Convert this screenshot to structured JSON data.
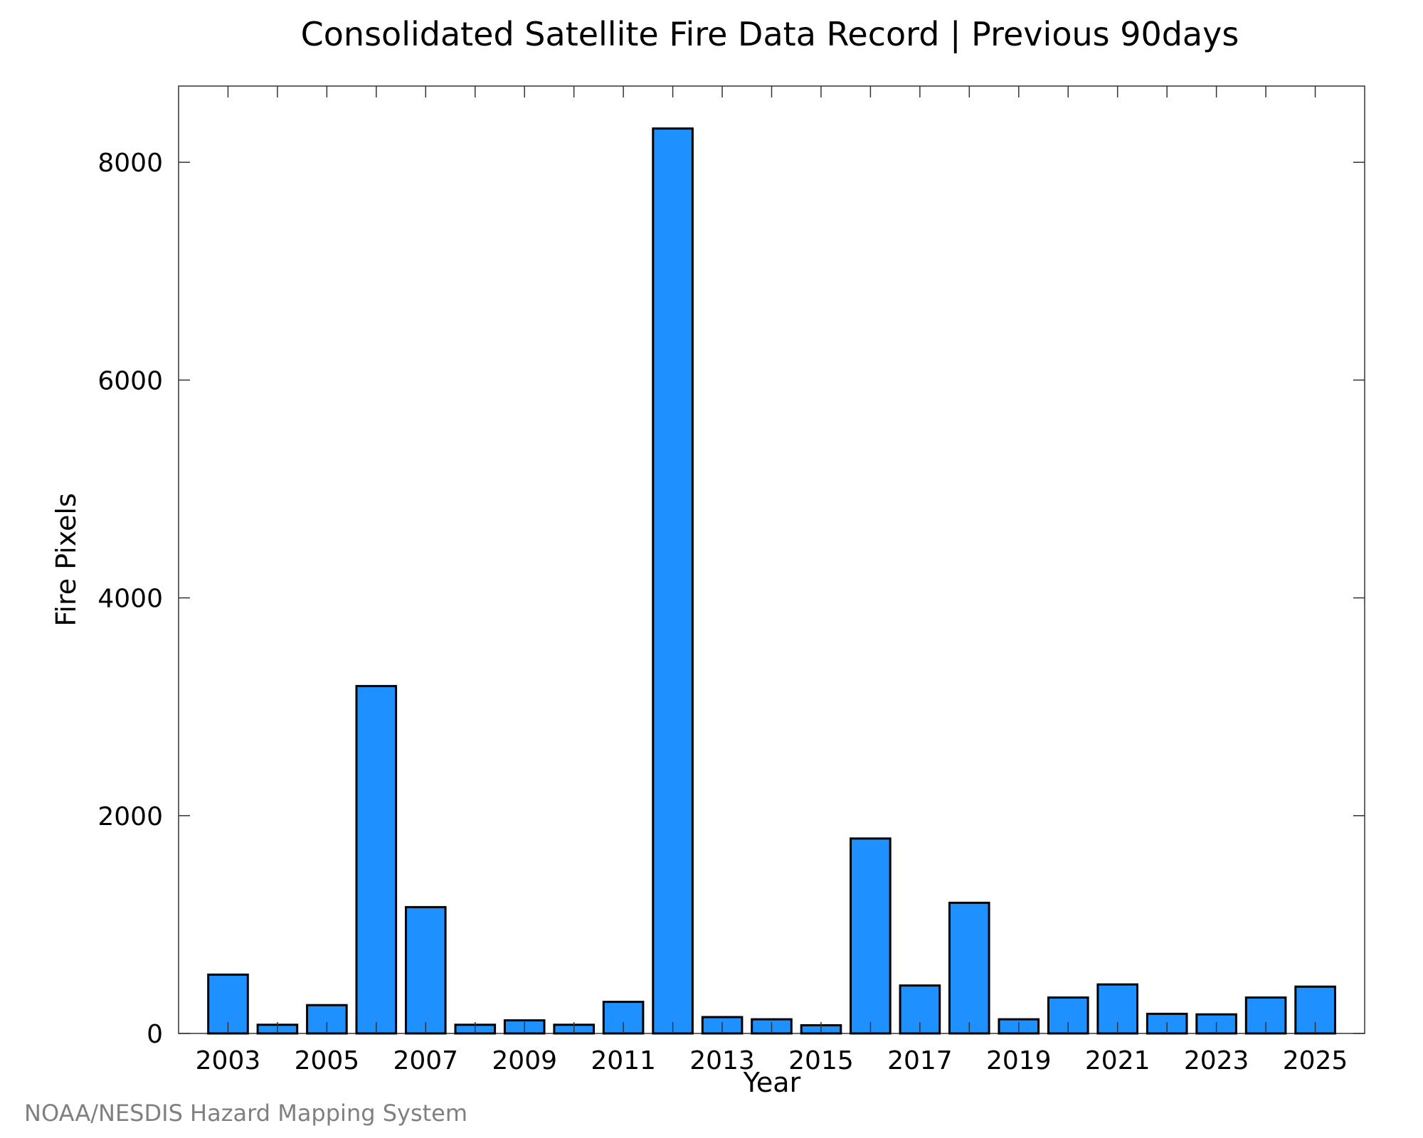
{
  "chart_data": {
    "type": "bar",
    "title": "Consolidated Satellite Fire Data Record | Previous 90days",
    "xlabel": "Year",
    "ylabel": "Fire Pixels",
    "categories": [
      "2003",
      "2004",
      "2005",
      "2006",
      "2007",
      "2008",
      "2009",
      "2010",
      "2011",
      "2012",
      "2013",
      "2014",
      "2015",
      "2016",
      "2017",
      "2018",
      "2019",
      "2020",
      "2021",
      "2022",
      "2023",
      "2024",
      "2025"
    ],
    "x_tick_labels": [
      "2003",
      "2005",
      "2007",
      "2009",
      "2011",
      "2013",
      "2015",
      "2017",
      "2019",
      "2021",
      "2023",
      "2025"
    ],
    "values": [
      540,
      80,
      260,
      3190,
      1160,
      80,
      120,
      80,
      290,
      8310,
      150,
      130,
      75,
      1790,
      440,
      1200,
      130,
      330,
      450,
      180,
      175,
      330,
      430
    ],
    "ylim": [
      0,
      8700
    ],
    "y_ticks": [
      0,
      2000,
      4000,
      6000,
      8000
    ],
    "bar_color": "#1E90FF",
    "grid": false,
    "legend": "none"
  },
  "footer": {
    "credit": "NOAA/NESDIS Hazard Mapping System"
  }
}
